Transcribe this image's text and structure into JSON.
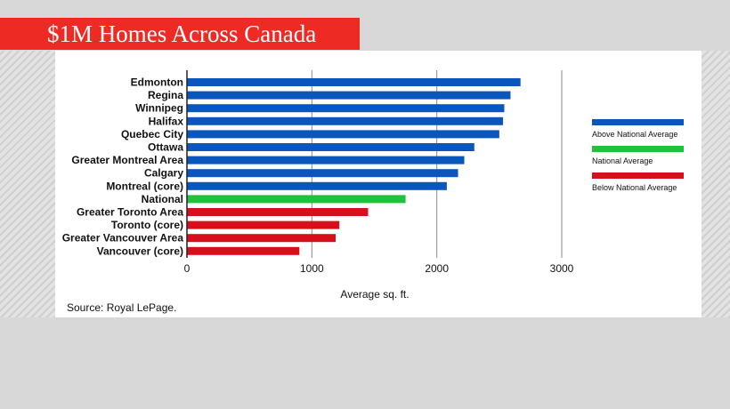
{
  "title": "$1M Homes Across Canada",
  "source": "Source: Royal LePage.",
  "colors": {
    "above": "#0a56bd",
    "national": "#1fc23a",
    "below": "#d70f1b",
    "banner": "#ee2a24"
  },
  "chart_data": {
    "type": "bar",
    "orientation": "horizontal",
    "title": "",
    "xlabel": "Average sq. ft.",
    "ylabel": "",
    "xlim": [
      0,
      3000
    ],
    "ticks": [
      "0",
      "1000",
      "2000",
      "3000"
    ],
    "grid": true,
    "legend_position": "right",
    "categories": [
      "Edmonton",
      "Regina",
      "Winnipeg",
      "Halifax",
      "Quebec City",
      "Ottawa",
      "Greater Montreal Area",
      "Calgary",
      "Montreal (core)",
      "National",
      "Greater Toronto Area",
      "Toronto (core)",
      "Greater Vancouver Area",
      "Vancouver (core)"
    ],
    "values": [
      2670,
      2590,
      2540,
      2530,
      2500,
      2300,
      2220,
      2170,
      2080,
      1750,
      1450,
      1220,
      1190,
      900
    ],
    "groups": [
      "above",
      "above",
      "above",
      "above",
      "above",
      "above",
      "above",
      "above",
      "above",
      "national",
      "below",
      "below",
      "below",
      "below"
    ],
    "legend": [
      {
        "key": "above",
        "label": "Above National Average"
      },
      {
        "key": "national",
        "label": "National Average"
      },
      {
        "key": "below",
        "label": "Below National Average"
      }
    ]
  }
}
